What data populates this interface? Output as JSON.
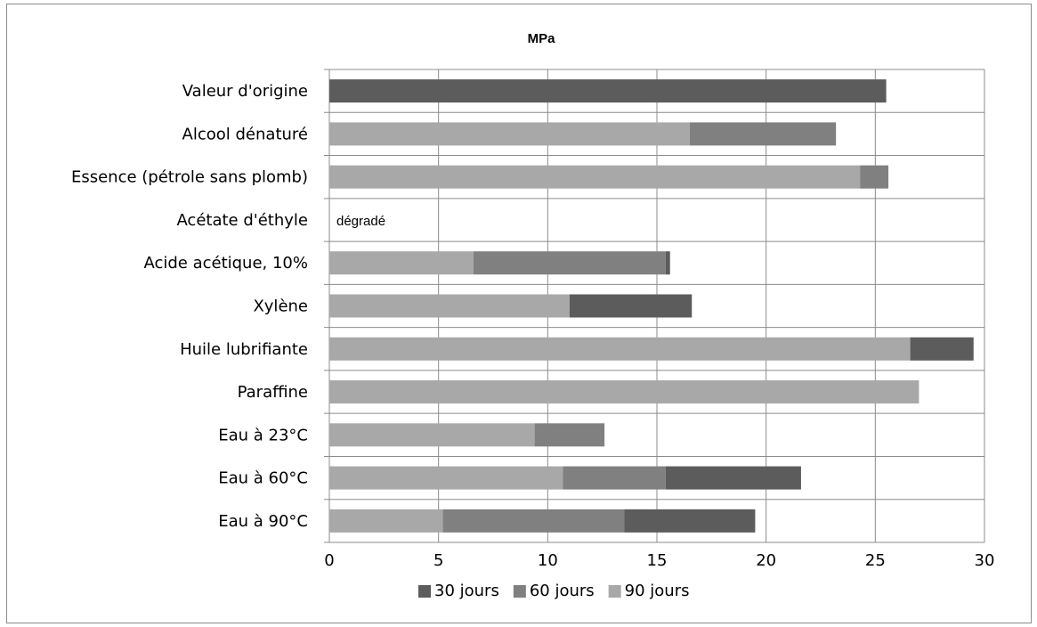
{
  "chart_data": {
    "type": "bar",
    "orientation": "horizontal",
    "stacked": true,
    "title": "MPa",
    "xlabel": "",
    "ylabel": "",
    "xlim": [
      0,
      30
    ],
    "xticks": [
      0,
      5,
      10,
      15,
      20,
      25,
      30
    ],
    "grid": true,
    "legend_position": "bottom",
    "categories": [
      "Valeur d'origine",
      "Alcool dénaturé",
      "Essence (pétrole sans plomb)",
      "Acétate d'éthyle",
      "Acide acétique, 10%",
      "Xylène",
      "Huile lubrifiante",
      "Paraffine",
      "Eau à 23°C",
      "Eau à 60°C",
      "Eau à 90°C"
    ],
    "series": [
      {
        "name": "90 jours",
        "color": "#a8a8a8",
        "values": [
          0,
          16.5,
          24.3,
          0,
          6.6,
          11.0,
          26.6,
          27.0,
          9.4,
          10.7,
          5.2
        ]
      },
      {
        "name": "60 jours",
        "color": "#808080",
        "values": [
          0,
          6.7,
          1.3,
          0,
          8.8,
          0,
          0,
          0,
          3.2,
          4.7,
          8.3
        ]
      },
      {
        "name": "30 jours",
        "color": "#5c5c5c",
        "values": [
          25.5,
          0,
          0,
          0,
          0.2,
          5.6,
          2.9,
          0,
          0,
          6.2,
          6.0
        ]
      }
    ],
    "legend_order": [
      "30 jours",
      "60 jours",
      "90 jours"
    ],
    "annotations": [
      {
        "category": "Acétate d'éthyle",
        "text": "dégradé"
      }
    ]
  }
}
